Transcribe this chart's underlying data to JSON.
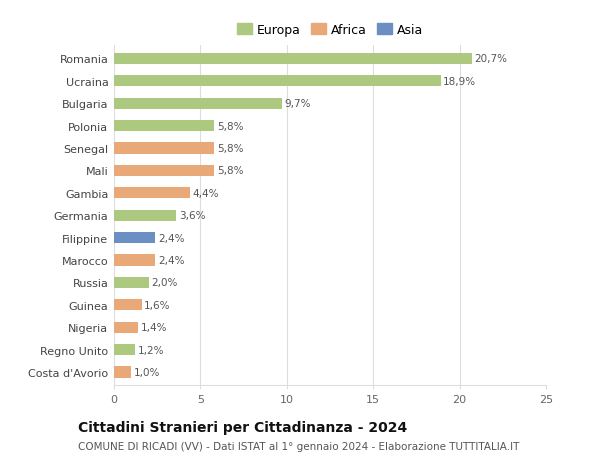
{
  "countries": [
    "Romania",
    "Ucraina",
    "Bulgaria",
    "Polonia",
    "Senegal",
    "Mali",
    "Gambia",
    "Germania",
    "Filippine",
    "Marocco",
    "Russia",
    "Guinea",
    "Nigeria",
    "Regno Unito",
    "Costa d'Avorio"
  ],
  "values": [
    20.7,
    18.9,
    9.7,
    5.8,
    5.8,
    5.8,
    4.4,
    3.6,
    2.4,
    2.4,
    2.0,
    1.6,
    1.4,
    1.2,
    1.0
  ],
  "labels": [
    "20,7%",
    "18,9%",
    "9,7%",
    "5,8%",
    "5,8%",
    "5,8%",
    "4,4%",
    "3,6%",
    "2,4%",
    "2,4%",
    "2,0%",
    "1,6%",
    "1,4%",
    "1,2%",
    "1,0%"
  ],
  "continents": [
    "Europa",
    "Europa",
    "Europa",
    "Europa",
    "Africa",
    "Africa",
    "Africa",
    "Europa",
    "Asia",
    "Africa",
    "Europa",
    "Africa",
    "Africa",
    "Europa",
    "Africa"
  ],
  "colors": {
    "Europa": "#adc97f",
    "Africa": "#e8a878",
    "Asia": "#6b8fc2"
  },
  "xlim": [
    0,
    25
  ],
  "xticks": [
    0,
    5,
    10,
    15,
    20,
    25
  ],
  "title": "Cittadini Stranieri per Cittadinanza - 2024",
  "subtitle": "COMUNE DI RICADI (VV) - Dati ISTAT al 1° gennaio 2024 - Elaborazione TUTTITALIA.IT",
  "background_color": "#ffffff",
  "grid_color": "#dddddd",
  "label_fontsize": 7.5,
  "ytick_fontsize": 8.0,
  "xtick_fontsize": 8.0,
  "bar_height": 0.5,
  "legend_fontsize": 9.0,
  "title_fontsize": 10.0,
  "subtitle_fontsize": 7.5
}
